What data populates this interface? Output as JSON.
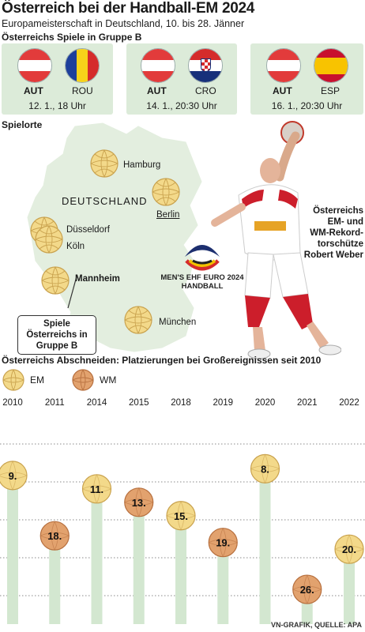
{
  "header": {
    "title": "Österreich bei der Handball-EM 2024",
    "subtitle": "Europameisterschaft in Deutschland, 10. bis 28. Jänner",
    "group_heading": "Österreichs Spiele in Gruppe B"
  },
  "matches": [
    {
      "home": "AUT",
      "away": "ROU",
      "date": "12. 1., 18 Uhr"
    },
    {
      "home": "AUT",
      "away": "CRO",
      "date": "14. 1., 20:30 Uhr"
    },
    {
      "home": "AUT",
      "away": "ESP",
      "date": "16. 1., 20:30 Uhr"
    }
  ],
  "venues": {
    "heading": "Spielorte",
    "country": "DEUTSCHLAND",
    "cities": [
      "Hamburg",
      "Berlin",
      "Düsseldorf",
      "Köln",
      "Mannheim",
      "München"
    ],
    "callout": "Spiele Österreichs in Gruppe B"
  },
  "logo": {
    "line1": "MEN'S EHF EURO 2024",
    "line2": "HANDBALL"
  },
  "player": {
    "caption_line1": "Österreichs",
    "caption_line2": "EM- und",
    "caption_line3": "WM-Rekord-",
    "caption_line4": "torschütze",
    "caption_line5": "Robert Weber"
  },
  "results": {
    "heading": "Österreichs Abschneiden: Platzierungen bei Großereignissen seit 2010",
    "legend": [
      {
        "label": "EM",
        "color": "#f3d98a"
      },
      {
        "label": "WM",
        "color": "#e2a26e"
      }
    ]
  },
  "chart_data": {
    "type": "bar",
    "title": "Österreichs Abschneiden: Platzierungen bei Großereignissen seit 2010",
    "categories": [
      "2010",
      "2011",
      "2014",
      "2015",
      "2018",
      "2019",
      "2020",
      "2021",
      "2022"
    ],
    "values": [
      9,
      18,
      11,
      13,
      15,
      19,
      8,
      26,
      20
    ],
    "labels": [
      "9.",
      "18.",
      "11.",
      "13.",
      "15.",
      "19.",
      "8.",
      "26.",
      "20."
    ],
    "event": [
      "EM",
      "WM",
      "EM",
      "WM",
      "EM",
      "WM",
      "EM",
      "WM",
      "EM"
    ],
    "y_inverted": true,
    "ylim": [
      1,
      30
    ],
    "grid": true
  },
  "footer": "VN-GRAFIK, QUELLE: APA",
  "colors": {
    "card_bg": "#dcebd9",
    "bar": "#d3e7d0",
    "grid": "#8a8a8a",
    "em_ball": "#f3d98a",
    "wm_ball": "#e2a26e"
  }
}
